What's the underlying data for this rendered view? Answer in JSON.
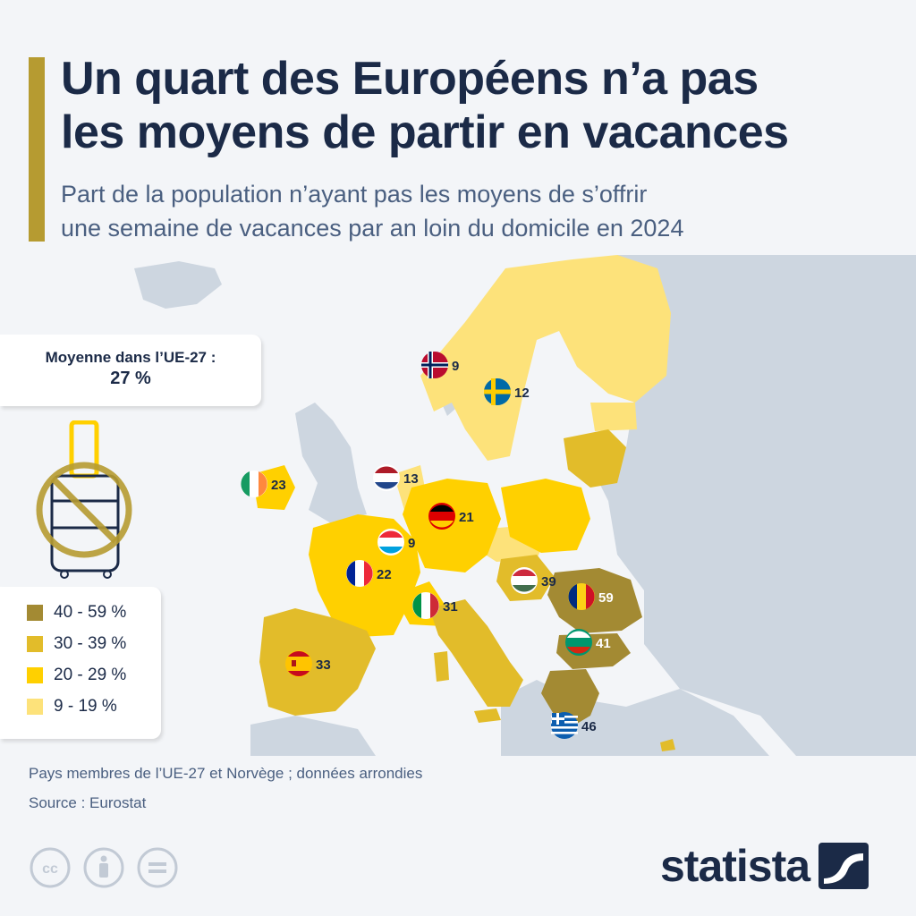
{
  "title_line1": "Un quart des Européens n’a pas",
  "title_line2": "les moyens de partir en vacances",
  "subtitle_line1": "Part de la population n’ayant pas les moyens de s’offrir",
  "subtitle_line2": "une semaine de vacances par an loin du domicile en 2024",
  "average": {
    "label": "Moyenne dans l’UE-27 :",
    "value": "27 %"
  },
  "legend": [
    {
      "label": "40 - 59 %",
      "color": "#a38a33"
    },
    {
      "label": "30 - 39 %",
      "color": "#e2bc2a"
    },
    {
      "label": "20 - 29 %",
      "color": "#ffd000"
    },
    {
      "label": "9 - 19 %",
      "color": "#fde27a"
    }
  ],
  "countries": [
    {
      "name": "Norvège",
      "value": "9"
    },
    {
      "name": "Suède",
      "value": "12"
    },
    {
      "name": "Irlande",
      "value": "23"
    },
    {
      "name": "Pays-Bas",
      "value": "13"
    },
    {
      "name": "Allemagne",
      "value": "21"
    },
    {
      "name": "Luxembourg",
      "value": "9"
    },
    {
      "name": "France",
      "value": "22"
    },
    {
      "name": "Hongrie",
      "value": "39"
    },
    {
      "name": "Roumanie",
      "value": "59"
    },
    {
      "name": "Italie",
      "value": "31"
    },
    {
      "name": "Bulgarie",
      "value": "41"
    },
    {
      "name": "Espagne",
      "value": "33"
    },
    {
      "name": "Grèce",
      "value": "46"
    }
  ],
  "note": "Pays membres de l’UE-27 et Norvège ; données arrondies",
  "source": "Source : Eurostat",
  "logo": "statista",
  "colors": {
    "accent": "#b69b31",
    "text": "#1b2a47",
    "land_other": "#cdd6e0"
  }
}
